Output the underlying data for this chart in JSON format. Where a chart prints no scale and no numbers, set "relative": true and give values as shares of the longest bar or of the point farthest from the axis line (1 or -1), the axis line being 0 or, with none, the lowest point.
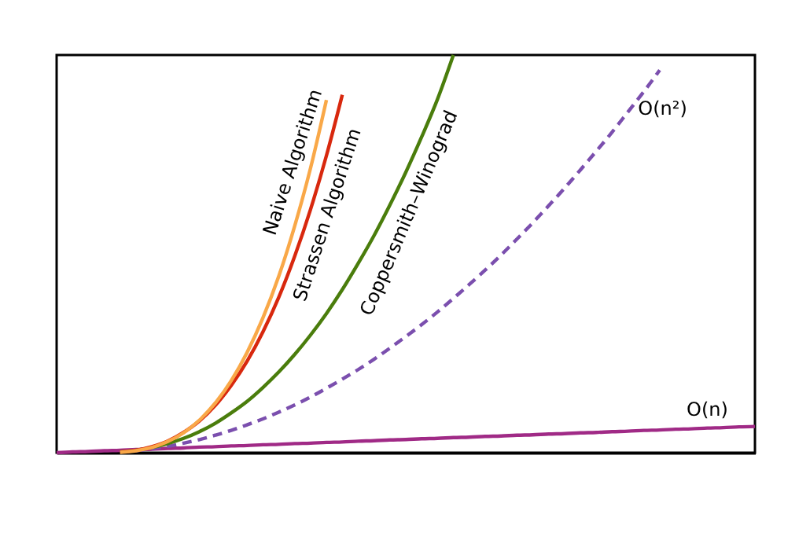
{
  "chart_data": {
    "type": "line",
    "relative": true,
    "categories": [
      null,
      null,
      null,
      null,
      null,
      null,
      null,
      null,
      null,
      null,
      null,
      null,
      null,
      null,
      null,
      null,
      null,
      null,
      null,
      null,
      null,
      null,
      null,
      null,
      null,
      null,
      null,
      null,
      null,
      null,
      null,
      null,
      null,
      null,
      null,
      null,
      null,
      null,
      null,
      null,
      null,
      null,
      null,
      null,
      null
    ],
    "series": [
      {
        "name": "Naive Algorithm",
        "color": "#f9a848",
        "values": [
          null,
          null,
          null,
          null,
          0.001,
          0.005,
          0.013,
          0.028,
          0.05,
          0.082,
          0.125,
          0.181,
          0.252,
          0.339,
          0.444,
          0.57,
          0.716,
          0.887,
          null,
          null,
          null,
          null,
          null,
          null,
          null,
          null,
          null,
          null,
          null,
          null,
          null,
          null,
          null,
          null,
          null,
          null,
          null,
          null,
          null,
          null,
          null,
          null,
          null,
          null,
          null
        ]
      },
      {
        "name": "Strassen Algorithm",
        "color": "#d8280e",
        "values": [
          null,
          null,
          null,
          null,
          0.002,
          0.006,
          0.015,
          0.029,
          0.051,
          0.08,
          0.119,
          0.169,
          0.23,
          0.304,
          0.391,
          0.494,
          0.612,
          0.747,
          0.9,
          null,
          null,
          null,
          null,
          null,
          null,
          null,
          null,
          null,
          null,
          null,
          null,
          null,
          null,
          null,
          null,
          null,
          null,
          null,
          null,
          null,
          null,
          null,
          null,
          null,
          null
        ]
      },
      {
        "name": "Coppersmith–Winograd",
        "color": "#4a7d0c",
        "values": [
          null,
          null,
          null,
          null,
          0.002,
          0.006,
          0.013,
          0.023,
          0.036,
          0.053,
          0.074,
          0.1,
          0.129,
          0.164,
          0.203,
          0.247,
          0.296,
          0.35,
          0.41,
          0.476,
          0.546,
          0.623,
          0.705,
          0.794,
          0.889,
          1,
          null,
          null,
          null,
          null,
          null,
          null,
          null,
          null,
          null,
          null,
          null,
          null,
          null,
          null,
          null,
          null,
          null,
          null,
          null
        ]
      },
      {
        "name": "O(n²)",
        "color": "#7b4fae",
        "line_style": "dashed",
        "values": [
          null,
          null,
          null,
          null,
          0.002,
          0.005,
          0.01,
          0.016,
          0.024,
          0.033,
          0.044,
          0.056,
          0.07,
          0.085,
          0.102,
          0.12,
          0.14,
          0.162,
          0.185,
          0.209,
          0.235,
          0.263,
          0.292,
          0.322,
          0.354,
          0.388,
          0.423,
          0.459,
          0.497,
          0.537,
          0.578,
          0.621,
          0.665,
          0.711,
          0.758,
          0.806,
          0.857,
          0.908,
          0.962,
          null,
          null,
          null,
          null,
          null,
          null
        ]
      },
      {
        "name": "O(n)",
        "color": "#a02a86",
        "values": [
          0,
          0.002,
          0.003,
          0.005,
          0.006,
          0.008,
          0.009,
          0.011,
          0.012,
          0.014,
          0.015,
          0.017,
          0.018,
          0.02,
          0.021,
          0.023,
          0.024,
          0.026,
          0.027,
          0.029,
          0.03,
          0.032,
          0.033,
          0.035,
          0.036,
          0.038,
          0.039,
          0.041,
          0.042,
          0.044,
          0.045,
          0.047,
          0.048,
          0.05,
          0.051,
          0.053,
          0.054,
          0.056,
          0.057,
          0.059,
          0.06,
          0.062,
          0.063,
          0.065,
          0.066
        ]
      }
    ]
  }
}
